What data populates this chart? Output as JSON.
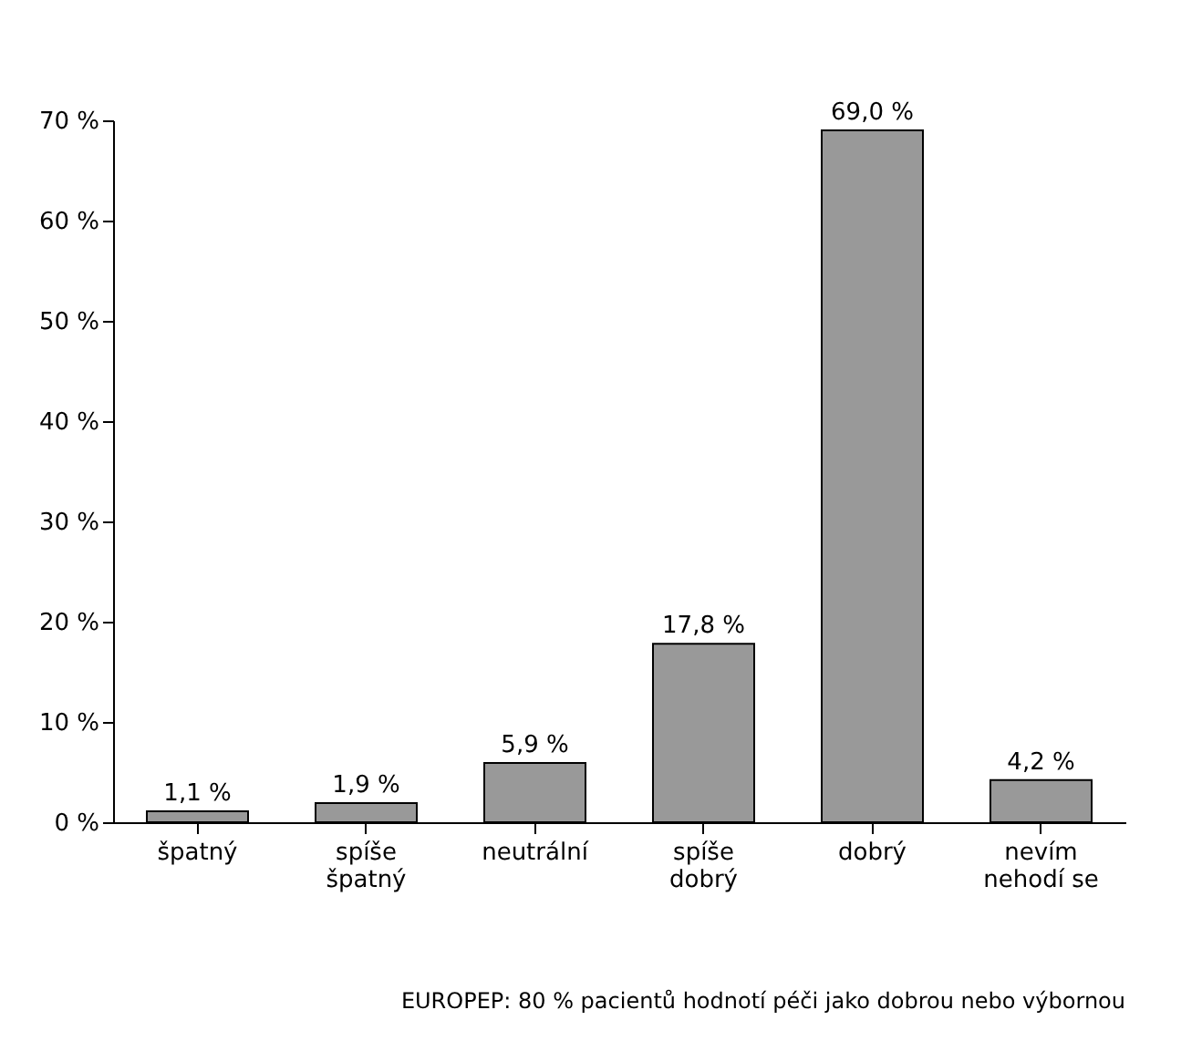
{
  "chart_data": {
    "type": "bar",
    "categories": [
      "špatný",
      "spíše\nšpatný",
      "neutrální",
      "spíše\ndobrý",
      "dobrý",
      "nevím\nnehodí se"
    ],
    "values": [
      1.1,
      1.9,
      5.9,
      17.8,
      69.0,
      4.2
    ],
    "value_labels": [
      "1,1 %",
      "1,9 %",
      "5,9 %",
      "17,8 %",
      "69,0 %",
      "4,2 %"
    ],
    "color": "#999999",
    "ylim": [
      0,
      70
    ],
    "yticks": [
      {
        "value": 0,
        "label": "0 %"
      },
      {
        "value": 10,
        "label": "10 %"
      },
      {
        "value": 20,
        "label": "20 %"
      },
      {
        "value": 30,
        "label": "30 %"
      },
      {
        "value": 40,
        "label": "40 %"
      },
      {
        "value": 50,
        "label": "50 %"
      },
      {
        "value": 60,
        "label": "60 %"
      },
      {
        "value": 70,
        "label": "70 %"
      }
    ],
    "grid": false,
    "annotations": [
      "EUROPEP: 80 % pacientů hodnotí péči jako dobrou nebo výbornou"
    ]
  }
}
